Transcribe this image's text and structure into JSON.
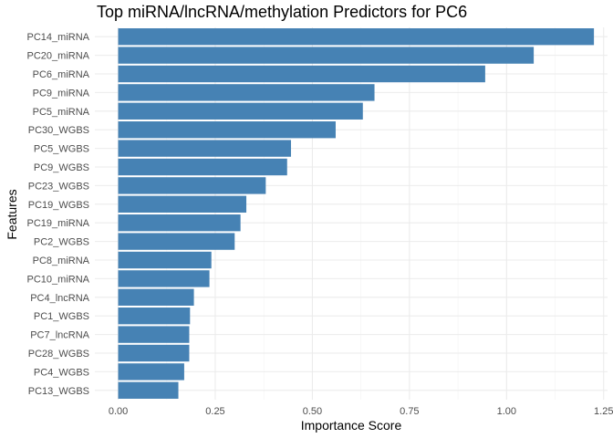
{
  "chart_data": {
    "type": "bar",
    "orientation": "horizontal",
    "title": "Top miRNA/lncRNA/methylation Predictors for PC6",
    "xlabel": "Importance Score",
    "ylabel": "Features",
    "categories": [
      "PC14_miRNA",
      "PC20_miRNA",
      "PC6_miRNA",
      "PC9_miRNA",
      "PC5_miRNA",
      "PC30_WGBS",
      "PC5_WGBS",
      "PC9_WGBS",
      "PC23_WGBS",
      "PC19_WGBS",
      "PC19_miRNA",
      "PC2_WGBS",
      "PC8_miRNA",
      "PC10_miRNA",
      "PC4_lncRNA",
      "PC1_WGBS",
      "PC7_lncRNA",
      "PC28_WGBS",
      "PC4_WGBS",
      "PC13_WGBS"
    ],
    "values": [
      1.225,
      1.07,
      0.945,
      0.66,
      0.63,
      0.56,
      0.445,
      0.435,
      0.38,
      0.33,
      0.315,
      0.3,
      0.24,
      0.235,
      0.195,
      0.185,
      0.183,
      0.183,
      0.17,
      0.155
    ],
    "xlim": [
      -0.06,
      1.26
    ],
    "xticks": [
      0,
      0.25,
      0.5,
      0.75,
      1.0,
      1.25
    ],
    "xtick_labels": [
      "0.00",
      "0.25",
      "0.50",
      "0.75",
      "1.00",
      "1.25"
    ],
    "bar_color": "#4682b4",
    "grid": true,
    "legend": "none"
  }
}
